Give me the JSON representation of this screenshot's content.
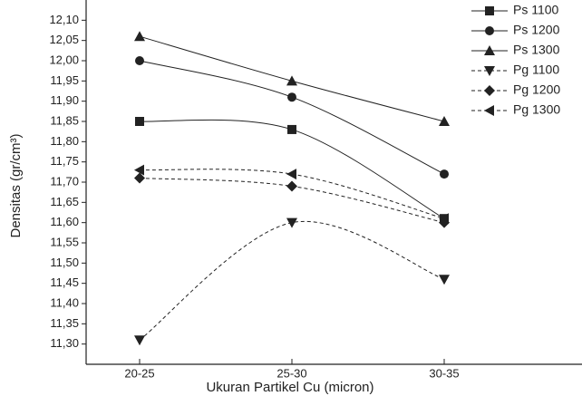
{
  "chart_data": {
    "type": "line",
    "xlabel": "Ukuran Partikel Cu (micron)",
    "ylabel": "Densitas (gr/cm³)",
    "categories": [
      "20-25",
      "25-30",
      "30-35"
    ],
    "ylim": [
      11.25,
      12.15
    ],
    "yticks": [
      {
        "value": 11.3,
        "label": "11,30"
      },
      {
        "value": 11.35,
        "label": "11,35"
      },
      {
        "value": 11.4,
        "label": "11,40"
      },
      {
        "value": 11.45,
        "label": "11,45"
      },
      {
        "value": 11.5,
        "label": "11,50"
      },
      {
        "value": 11.55,
        "label": "11,55"
      },
      {
        "value": 11.6,
        "label": "11,60"
      },
      {
        "value": 11.65,
        "label": "11,65"
      },
      {
        "value": 11.7,
        "label": "11,70"
      },
      {
        "value": 11.75,
        "label": "11,75"
      },
      {
        "value": 11.8,
        "label": "11,80"
      },
      {
        "value": 11.85,
        "label": "11,85"
      },
      {
        "value": 11.9,
        "label": "11,90"
      },
      {
        "value": 11.95,
        "label": "11,95"
      },
      {
        "value": 12.0,
        "label": "12,00"
      },
      {
        "value": 12.05,
        "label": "12,05"
      },
      {
        "value": 12.1,
        "label": "12,10"
      }
    ],
    "series": [
      {
        "name": "Ps 1100",
        "color": "#222222",
        "marker": "square",
        "dash": false,
        "values": [
          11.85,
          11.83,
          11.61
        ]
      },
      {
        "name": "Ps 1200",
        "color": "#222222",
        "marker": "circle",
        "dash": false,
        "values": [
          12.0,
          11.91,
          11.72
        ]
      },
      {
        "name": "Ps 1300",
        "color": "#222222",
        "marker": "triangle-up",
        "dash": false,
        "values": [
          12.06,
          11.95,
          11.85
        ]
      },
      {
        "name": "Pg 1100",
        "color": "#222222",
        "marker": "triangle-down",
        "dash": true,
        "values": [
          11.31,
          11.6,
          11.46
        ]
      },
      {
        "name": "Pg 1200",
        "color": "#222222",
        "marker": "diamond",
        "dash": true,
        "values": [
          11.71,
          11.69,
          11.6
        ]
      },
      {
        "name": "Pg 1300",
        "color": "#222222",
        "marker": "triangle-left",
        "dash": true,
        "values": [
          11.73,
          11.72,
          11.61
        ]
      }
    ]
  }
}
